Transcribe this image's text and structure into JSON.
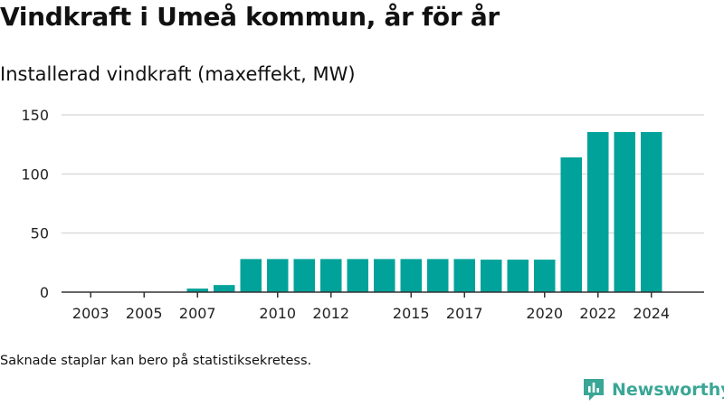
{
  "title": "Vindkraft i Umeå kommun, år för år",
  "subtitle": "Installerad vindkraft (maxeffekt, MW)",
  "footnote": "Saknade staplar kan bero på statistiksekretess.",
  "brand": "Newsworthy",
  "colors": {
    "bar": "#00a29a",
    "grid": "#dcdcdc",
    "axis": "#333333",
    "brand": "#3aa696"
  },
  "chart_data": {
    "type": "bar",
    "title": "Installerad vindkraft (maxeffekt, MW)",
    "categories": [
      2003,
      2004,
      2005,
      2006,
      2007,
      2008,
      2009,
      2010,
      2011,
      2012,
      2013,
      2014,
      2015,
      2016,
      2017,
      2018,
      2019,
      2020,
      2021,
      2022,
      2023,
      2024
    ],
    "values": [
      0,
      0,
      0,
      0,
      3,
      6,
      28,
      28,
      28,
      28,
      28,
      28,
      28,
      28,
      28,
      27.5,
      27.5,
      27.5,
      114,
      135.5,
      135.5,
      135.5
    ],
    "x_tick_labels": [
      "2003",
      "2005",
      "2007",
      "2010",
      "2012",
      "2015",
      "2017",
      "2020",
      "2022",
      "2024"
    ],
    "y_ticks": [
      0,
      50,
      100,
      150
    ],
    "ylim": [
      0,
      150
    ],
    "grid": true,
    "legend": "none"
  }
}
